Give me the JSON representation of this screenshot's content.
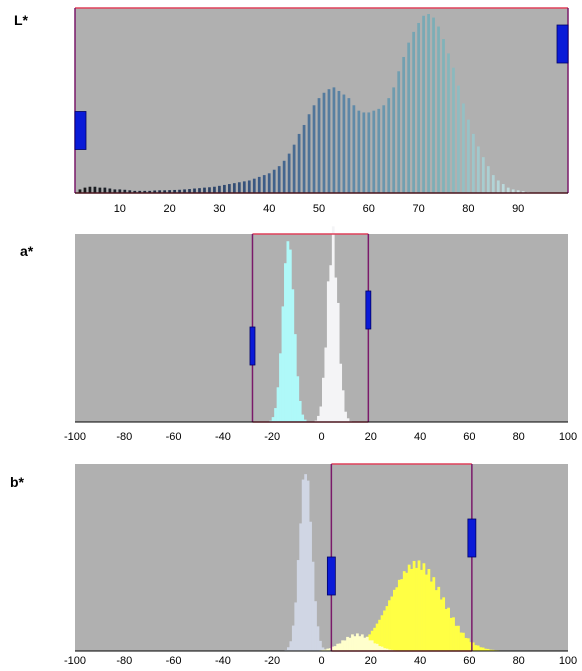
{
  "panels": [
    {
      "id": "L",
      "label": "L*",
      "ticks": [
        "10",
        "20",
        "30",
        "40",
        "50",
        "60",
        "70",
        "80",
        "90"
      ],
      "tick_values": [
        10,
        20,
        30,
        40,
        50,
        60,
        70,
        80,
        90
      ],
      "range": [
        1,
        100
      ],
      "selection": [
        1,
        100
      ],
      "bar_width_units": 0.55,
      "bins_x": [
        2,
        3,
        4,
        5,
        6,
        7,
        8,
        9,
        10,
        11,
        12,
        13,
        14,
        15,
        16,
        17,
        18,
        19,
        20,
        21,
        22,
        23,
        24,
        25,
        26,
        27,
        28,
        29,
        30,
        31,
        32,
        33,
        34,
        35,
        36,
        37,
        38,
        39,
        40,
        41,
        42,
        43,
        44,
        45,
        46,
        47,
        48,
        49,
        50,
        51,
        52,
        53,
        54,
        55,
        56,
        57,
        58,
        59,
        60,
        61,
        62,
        63,
        64,
        65,
        66,
        67,
        68,
        69,
        70,
        71,
        72,
        73,
        74,
        75,
        76,
        77,
        78,
        79,
        80,
        81,
        82,
        83,
        84,
        85,
        86,
        87,
        88,
        89,
        90,
        91,
        92,
        93
      ],
      "bins_y": [
        0.02,
        0.03,
        0.035,
        0.035,
        0.03,
        0.03,
        0.025,
        0.02,
        0.02,
        0.018,
        0.015,
        0.012,
        0.012,
        0.012,
        0.012,
        0.014,
        0.015,
        0.015,
        0.016,
        0.017,
        0.018,
        0.02,
        0.022,
        0.025,
        0.027,
        0.03,
        0.032,
        0.035,
        0.04,
        0.045,
        0.05,
        0.055,
        0.06,
        0.065,
        0.07,
        0.08,
        0.09,
        0.1,
        0.11,
        0.13,
        0.15,
        0.18,
        0.22,
        0.27,
        0.33,
        0.38,
        0.44,
        0.49,
        0.53,
        0.56,
        0.58,
        0.59,
        0.57,
        0.55,
        0.53,
        0.49,
        0.46,
        0.45,
        0.45,
        0.46,
        0.47,
        0.49,
        0.53,
        0.59,
        0.68,
        0.76,
        0.84,
        0.9,
        0.95,
        0.99,
        1.0,
        0.98,
        0.93,
        0.86,
        0.78,
        0.7,
        0.6,
        0.5,
        0.41,
        0.33,
        0.26,
        0.2,
        0.15,
        0.1,
        0.07,
        0.05,
        0.03,
        0.02,
        0.015,
        0.01,
        0.005,
        0.003
      ],
      "color_stops": [
        "#1a1a1a",
        "#20304e",
        "#3b5a86",
        "#5f89a8",
        "#7fb2b8",
        "#d8eded"
      ]
    },
    {
      "id": "a",
      "label": "a*",
      "ticks": [
        "-100",
        "-80",
        "-60",
        "-40",
        "-20",
        "0",
        "20",
        "40",
        "60",
        "80",
        "100"
      ],
      "tick_values": [
        -100,
        -80,
        -60,
        -40,
        -20,
        0,
        20,
        40,
        60,
        80,
        100
      ],
      "range": [
        -100,
        100
      ],
      "selection": [
        -28,
        19
      ],
      "peaks": [
        {
          "center": -14,
          "width": 2.3,
          "height": 1.0,
          "color": "#aff9f9"
        },
        {
          "center": 4,
          "width": 2.2,
          "height": 1.0,
          "color": "#f4f4f6"
        }
      ]
    },
    {
      "id": "b",
      "label": "b*",
      "ticks": [
        "-100",
        "-80",
        "-60",
        "-40",
        "-20",
        "0",
        "20",
        "40",
        "60",
        "80",
        "100"
      ],
      "tick_values": [
        -100,
        -80,
        -60,
        -40,
        -20,
        0,
        20,
        40,
        60,
        80,
        100
      ],
      "range": [
        -100,
        100
      ],
      "selection": [
        4,
        61
      ],
      "peaks": [
        {
          "center": -7,
          "width": 2.5,
          "height": 1.0,
          "color": "#d0d6e4"
        },
        {
          "center": 38,
          "width": 10.5,
          "height": 0.48,
          "color": "#ffff44"
        },
        {
          "center": 14,
          "width": 6,
          "height": 0.09,
          "color": "#ffffcc"
        }
      ]
    }
  ],
  "colors": {
    "plot_bg": "#b0b0b0",
    "selection_border": "#e0405a",
    "selection_side": "#7a1a6a",
    "handle_fill": "#0a1ad8",
    "handle_stroke": "#000066",
    "axis": "#000000"
  }
}
